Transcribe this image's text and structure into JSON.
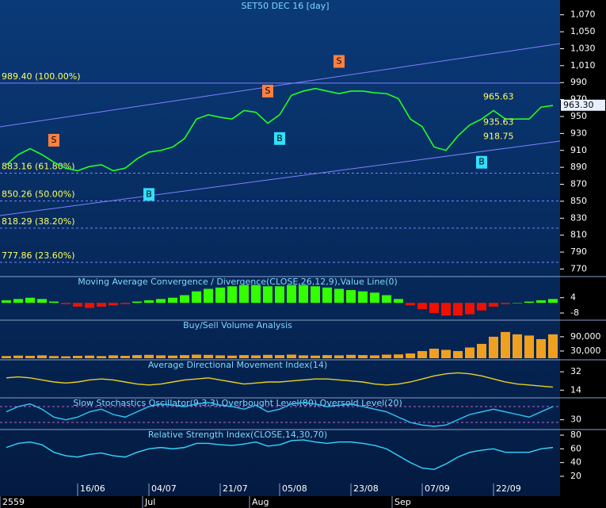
{
  "chart_data": [
    {
      "type": "line",
      "title": "SET50 DEC 16  [day]",
      "color": "#22ff22",
      "categories": [
        null,
        null,
        null,
        null,
        null,
        null,
        "16/06",
        null,
        null,
        null,
        null,
        null,
        "04/07",
        null,
        null,
        null,
        null,
        null,
        "21/07",
        null,
        null,
        null,
        null,
        "05/08",
        null,
        null,
        null,
        null,
        null,
        "23/08",
        null,
        null,
        null,
        null,
        null,
        "07/09",
        null,
        null,
        null,
        null,
        null,
        "22/09",
        null,
        null,
        null,
        null,
        null
      ],
      "months": [
        "2559",
        null,
        null,
        null,
        null,
        null,
        null,
        null,
        null,
        null,
        null,
        null,
        "Jul",
        null,
        null,
        null,
        null,
        null,
        null,
        null,
        null,
        "Aug",
        null,
        null,
        null,
        null,
        null,
        null,
        null,
        null,
        null,
        null,
        null,
        "Sep",
        null,
        null,
        null,
        null,
        null,
        null,
        null,
        null,
        null,
        null,
        null,
        null,
        null
      ],
      "values": [
        893,
        905,
        912,
        905,
        896,
        889,
        886,
        891,
        893,
        886,
        889,
        900,
        908,
        910,
        914,
        924,
        947,
        952,
        949,
        947,
        957,
        955,
        942,
        952,
        975,
        980,
        983,
        980,
        977,
        980,
        980,
        978,
        977,
        971,
        947,
        938,
        914,
        910,
        927,
        940,
        947,
        957,
        947,
        947,
        947,
        961,
        963
      ],
      "ylim": [
        762,
        1080
      ],
      "yticks": [
        770,
        790,
        810,
        830,
        850,
        870,
        890,
        910,
        930,
        950,
        970,
        990,
        {
          "value": 1010,
          "label": "1,010"
        },
        {
          "value": 1030,
          "label": "1,030"
        },
        {
          "value": 1050,
          "label": "1,050"
        },
        {
          "value": 1070,
          "label": "1,070"
        }
      ],
      "fib_levels": [
        {
          "value": 989.4,
          "label": "989.40 (100.00%)"
        },
        {
          "value": 883.16,
          "label": "883.16 (61.80%)"
        },
        {
          "value": 850.26,
          "label": "850.26 (50.00%)"
        },
        {
          "value": 818.29,
          "label": "818.29 (38.20%)"
        },
        {
          "value": 777.86,
          "label": "777.86 (23.60%)"
        }
      ],
      "price_levels": [
        965.63,
        935.63,
        918.75
      ],
      "last_price": {
        "value": 963.3,
        "label": "963.30"
      },
      "signals": [
        {
          "label": "S",
          "index": 4,
          "value": 922
        },
        {
          "label": "B",
          "index": 12,
          "value": 858
        },
        {
          "label": "S",
          "index": 22,
          "value": 980
        },
        {
          "label": "B",
          "index": 23,
          "value": 924
        },
        {
          "label": "S",
          "index": 28,
          "value": 1015
        },
        {
          "label": "B",
          "index": 40,
          "value": 896
        }
      ]
    },
    {
      "type": "bar",
      "title": "Moving Average Convergence / Divergence(CLOSE,26,12,9),Value Line(0)",
      "color": "#33ff00",
      "negative_color": "#ee1100",
      "values": [
        2,
        3,
        4,
        3,
        1,
        -1,
        -3,
        -4,
        -3,
        -2,
        -1,
        1,
        2,
        3,
        4,
        6,
        9,
        11,
        12,
        13,
        14,
        14,
        13,
        13,
        14,
        14,
        13,
        12,
        11,
        10,
        9,
        8,
        6,
        3,
        -2,
        -5,
        -8,
        -10,
        -10,
        -9,
        -6,
        -3,
        -1,
        0,
        1,
        2,
        3
      ],
      "ylim": [
        -13,
        20
      ],
      "yticks": [
        -8,
        4
      ]
    },
    {
      "type": "bar",
      "title": "Buy/Sell Volume Analysis",
      "color": "#f0a020",
      "values": [
        9000,
        11000,
        10000,
        12000,
        9000,
        8000,
        10000,
        11000,
        9000,
        12000,
        10000,
        13000,
        14000,
        12000,
        11000,
        13000,
        15000,
        14000,
        12000,
        11000,
        13000,
        12000,
        14000,
        13000,
        15000,
        12000,
        11000,
        13000,
        12000,
        14000,
        13000,
        12000,
        15000,
        16000,
        20000,
        30000,
        40000,
        35000,
        30000,
        45000,
        60000,
        90000,
        110000,
        100000,
        95000,
        80000,
        100000
      ],
      "ylim": [
        0,
        156000
      ],
      "yticks": [
        {
          "value": 30000,
          "label": "30,000"
        },
        {
          "value": 90000,
          "label": "90,000"
        }
      ]
    },
    {
      "type": "line",
      "title": "Average Directional Movement Index(14)",
      "color": "#e8d020",
      "values": [
        26,
        27,
        26,
        24,
        22,
        21,
        22,
        24,
        25,
        24,
        22,
        20,
        19,
        20,
        22,
        24,
        25,
        26,
        24,
        22,
        20,
        21,
        22,
        22,
        23,
        24,
        25,
        25,
        24,
        23,
        22,
        20,
        19,
        20,
        22,
        25,
        28,
        30,
        31,
        30,
        28,
        25,
        22,
        20,
        19,
        18,
        17
      ],
      "ylim": [
        8,
        43
      ],
      "yticks": [
        14,
        32
      ]
    },
    {
      "type": "line",
      "title": "Slow Stochastics Oscillator(9,3,3),Overbought Level(80),Oversold Level(20)",
      "color": "#30c8ff",
      "values": [
        60,
        80,
        90,
        70,
        40,
        30,
        40,
        60,
        70,
        50,
        40,
        60,
        80,
        90,
        85,
        80,
        90,
        95,
        85,
        80,
        70,
        85,
        60,
        70,
        90,
        95,
        90,
        80,
        85,
        90,
        80,
        70,
        60,
        40,
        20,
        10,
        5,
        10,
        30,
        50,
        60,
        70,
        60,
        50,
        40,
        60,
        80
      ],
      "levels": [
        80,
        20
      ],
      "ylim": [
        -1,
        110
      ],
      "yticks": [
        30
      ]
    },
    {
      "type": "line",
      "title": "Relative Strength Index(CLOSE,14,30,70)",
      "color": "#30d8ff",
      "values": [
        62,
        68,
        70,
        66,
        55,
        50,
        48,
        52,
        54,
        50,
        48,
        55,
        60,
        62,
        60,
        62,
        68,
        68,
        66,
        65,
        67,
        70,
        64,
        66,
        72,
        73,
        70,
        68,
        70,
        70,
        68,
        65,
        60,
        50,
        40,
        32,
        30,
        38,
        48,
        55,
        58,
        60,
        55,
        55,
        55,
        60,
        62
      ],
      "ylim": [
        -2,
        87
      ],
      "yticks": [
        20,
        40,
        60,
        80
      ]
    }
  ]
}
